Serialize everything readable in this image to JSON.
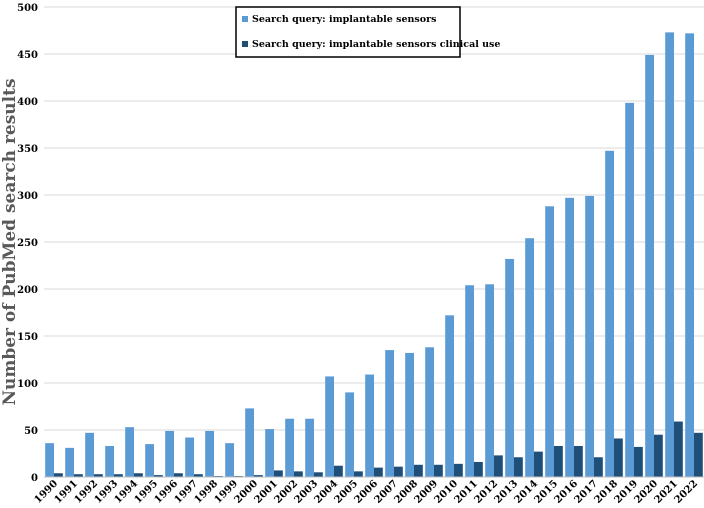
{
  "chart_data": {
    "type": "bar",
    "title": "",
    "xlabel": "",
    "ylabel": "Number of PubMed search results",
    "ylim": [
      0,
      500
    ],
    "yticks": [
      0,
      50,
      100,
      150,
      200,
      250,
      300,
      350,
      400,
      450,
      500
    ],
    "grid": true,
    "legend_position": "top-center",
    "categories": [
      "1990",
      "1991",
      "1992",
      "1993",
      "1994",
      "1995",
      "1996",
      "1997",
      "1998",
      "1999",
      "2000",
      "2001",
      "2002",
      "2003",
      "2004",
      "2005",
      "2006",
      "2007",
      "2008",
      "2009",
      "2010",
      "2011",
      "2012",
      "2013",
      "2014",
      "2015",
      "2016",
      "2017",
      "2018",
      "2019",
      "2020",
      "2021",
      "2022"
    ],
    "series": [
      {
        "name": "Search query: implantable sensors",
        "color": "#5b9bd5",
        "values": [
          36,
          31,
          47,
          33,
          53,
          35,
          49,
          42,
          49,
          36,
          73,
          51,
          62,
          62,
          107,
          90,
          109,
          135,
          132,
          138,
          172,
          204,
          205,
          232,
          254,
          288,
          297,
          299,
          347,
          398,
          449,
          473,
          472
        ]
      },
      {
        "name": "Search query: implantable sensors clinical use",
        "color": "#1f4e79",
        "values": [
          4,
          3,
          3,
          3,
          4,
          2,
          4,
          3,
          1,
          1,
          2,
          7,
          6,
          5,
          12,
          6,
          10,
          11,
          13,
          13,
          14,
          16,
          23,
          21,
          27,
          33,
          33,
          21,
          41,
          32,
          45,
          59,
          47
        ]
      }
    ]
  }
}
